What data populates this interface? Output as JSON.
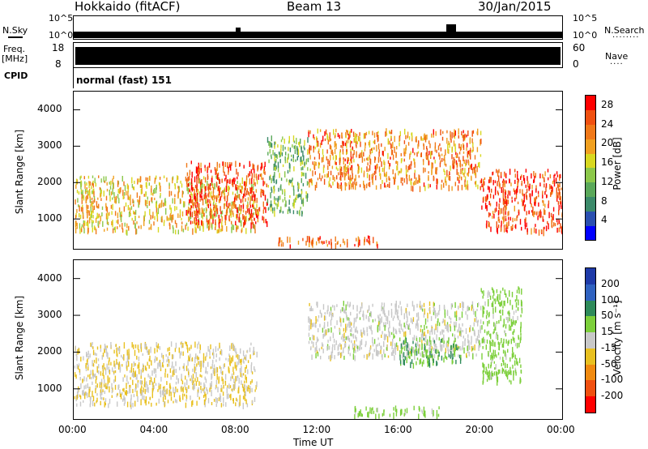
{
  "header": {
    "radar": "Hokkaido (fitACF)",
    "beam": "Beam 13",
    "date": "30/Jan/2015"
  },
  "left_labels": {
    "nsky": "N.Sky",
    "freq_line1": "Freq.",
    "freq_line2": "[MHz]",
    "cpid": "CPID"
  },
  "right_labels": {
    "nsearch": "N.Search",
    "nave": "Nave",
    "dots": "........",
    "dots_short": "...."
  },
  "ticks": {
    "nsky_hi": "10^5",
    "nsky_lo": "10^0",
    "freq_hi": "18",
    "freq_lo": "8",
    "nave_hi": "60",
    "nave_lo": "0"
  },
  "cpid_text": "normal (fast) 151",
  "chart_data": [
    {
      "type": "heatmap",
      "title": "",
      "xlabel": "Time UT",
      "ylabel": "Slant Range [km]",
      "x_ticks": [
        "00:00",
        "04:00",
        "08:00",
        "12:00",
        "16:00",
        "20:00",
        "00:00"
      ],
      "y_ticks": [
        1000,
        2000,
        3000,
        4000
      ],
      "xlim_hours": [
        0,
        24
      ],
      "ylim_km": [
        180,
        4500
      ],
      "colorbar": {
        "label": "Power [dB]",
        "ticks": [
          4,
          8,
          12,
          16,
          20,
          24,
          28
        ],
        "range": [
          0,
          30
        ],
        "colors": [
          "#0000ff",
          "#2a4fb0",
          "#3b8a6a",
          "#5aa85a",
          "#8cc84a",
          "#d8d820",
          "#f0a020",
          "#f07818",
          "#f05010",
          "#ff0000"
        ]
      },
      "regions": [
        {
          "t0": 0.0,
          "t1": 9.0,
          "r0": 700,
          "r1": 2200,
          "power": 18
        },
        {
          "t0": 5.5,
          "t1": 9.5,
          "r0": 900,
          "r1": 2600,
          "power": 26
        },
        {
          "t0": 9.5,
          "t1": 11.5,
          "r0": 1200,
          "r1": 3300,
          "power": 12
        },
        {
          "t0": 11.5,
          "t1": 20.0,
          "r0": 1900,
          "r1": 3500,
          "power": 22
        },
        {
          "t0": 20.0,
          "t1": 24.0,
          "r0": 700,
          "r1": 2400,
          "power": 26
        },
        {
          "t0": 10.0,
          "t1": 15.0,
          "r0": 300,
          "r1": 550,
          "power": 24
        }
      ]
    },
    {
      "type": "heatmap",
      "title": "",
      "xlabel": "Time UT",
      "ylabel": "Slant Range [km]",
      "x_ticks": [
        "00:00",
        "04:00",
        "08:00",
        "12:00",
        "16:00",
        "20:00",
        "00:00"
      ],
      "y_ticks": [
        1000,
        2000,
        3000,
        4000
      ],
      "xlim_hours": [
        0,
        24
      ],
      "ylim_km": [
        180,
        4500
      ],
      "colorbar": {
        "label": "Velocity [m s⁻¹]",
        "ticks": [
          200,
          100,
          50,
          15,
          -15,
          -50,
          -100,
          -200
        ],
        "colors": [
          "#1e3aa8",
          "#2f62c0",
          "#2e8a5a",
          "#7ccf3a",
          "#c8c8c8",
          "#e8c020",
          "#f08a10",
          "#f05010",
          "#ff0000"
        ]
      },
      "regions": [
        {
          "t0": 0.0,
          "t1": 9.0,
          "r0": 600,
          "r1": 2300,
          "velocity": -15
        },
        {
          "t0": 11.5,
          "t1": 20.0,
          "r0": 1900,
          "r1": 3400,
          "velocity": 0
        },
        {
          "t0": 16.0,
          "t1": 19.0,
          "r0": 1700,
          "r1": 2400,
          "velocity": 50
        },
        {
          "t0": 20.0,
          "t1": 22.0,
          "r0": 1200,
          "r1": 3800,
          "velocity": 30
        },
        {
          "t0": 13.5,
          "t1": 18.0,
          "r0": 300,
          "r1": 550,
          "velocity": 30
        }
      ]
    }
  ]
}
